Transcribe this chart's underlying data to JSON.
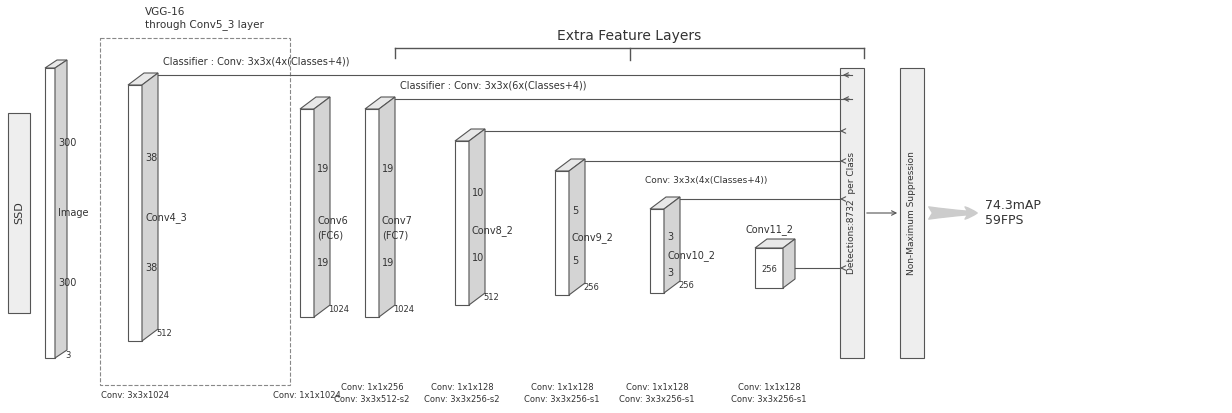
{
  "bg_color": "#ffffff",
  "text_color": "#333333",
  "edge_color": "#555555",
  "title": "Extra Feature Layers",
  "classifier1": "Classifier : Conv: 3x3x(4x(Classes+4))",
  "classifier2": "Classifier : Conv: 3x3x(6x(Classes+4))",
  "conv43_classifier": "Conv: 3x3x(4x(Classes+4))",
  "detections_label": "Detections:8732  per Class",
  "nms_label": "Non-Maximum Suppression",
  "result_label": "74.3mAP\n59FPS",
  "figsize": [
    12.32,
    4.13
  ],
  "dpi": 100
}
